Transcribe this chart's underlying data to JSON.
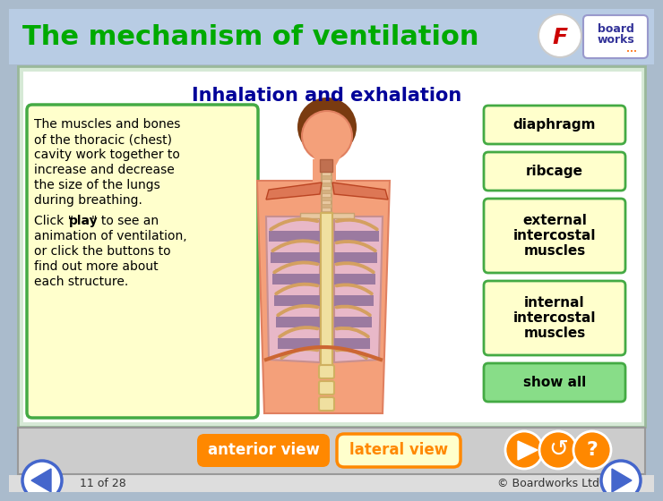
{
  "title": "The mechanism of ventilation",
  "title_color": "#00aa00",
  "slide_subtitle": "Inhalation and exhalation",
  "slide_subtitle_color": "#000099",
  "desc_text_1": "The muscles and bones\nof the thoracic (chest)\ncavity work together to\nincrease and decrease\nthe size of the lungs\nduring breathing.",
  "desc_text_2a": "Click \"",
  "desc_text_2b": "play",
  "desc_text_2c": "\" to see an\nanimation of ventilation,\nor click the buttons to\nfind out more about\neach structure.",
  "desc_box_bg": "#ffffcc",
  "desc_box_border": "#44aa44",
  "buttons": [
    "diaphragm",
    "ribcage",
    "external\nintercostal\nmuscles",
    "internal\nintercostal\nmuscles",
    "show all"
  ],
  "button_bg_normal": "#ffffcc",
  "button_bg_showall": "#88dd88",
  "button_border": "#44aa44",
  "bottom_btn1_text": "anterior view",
  "bottom_btn1_bg": "#ff8800",
  "bottom_btn2_text": "lateral view",
  "bottom_btn2_bg": "#ffffcc",
  "bottom_btn2_border": "#ff8800",
  "bottom_bar_bg": "#cccccc",
  "footer_text_left": "11 of 28",
  "footer_text_right": "© Boardworks Ltd 2008",
  "footer_color": "#333333",
  "nav_arrow_color": "#4466cc",
  "play_btn_color": "#ff8800",
  "outer_bg": "#aabbcc",
  "header_bg": "#b8cce4",
  "main_border": "#9ab89a",
  "main_bg": "#d6e9d6"
}
